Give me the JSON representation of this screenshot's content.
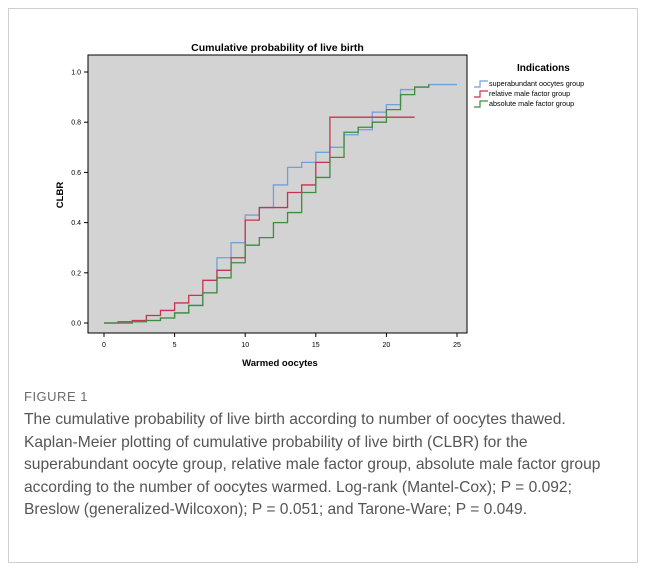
{
  "figure": {
    "label": "FIGURE 1",
    "caption": "The cumulative probability of live birth according to number of oocytes thawed. Kaplan-Meier plotting of cumulative probability of live birth (CLBR) for the superabundant oocyte group, relative male factor group, absolute male factor group according to the number of oocytes warmed. Log-rank (Mantel-Cox); P = 0.092; Breslow (generalized-Wilcoxon); P = 0.051; and Tarone-Ware; P = 0.049."
  },
  "chart_data": {
    "type": "line",
    "step": true,
    "title": "Cumulative probability of live birth",
    "xlabel": "Warmed oocytes",
    "ylabel": "CLBR",
    "xlim": [
      0,
      25
    ],
    "ylim": [
      0,
      1
    ],
    "xticks": [
      "0",
      "5",
      "10",
      "15",
      "20",
      "25"
    ],
    "yticks": [
      "0.0",
      "0.2",
      "0.4",
      "0.6",
      "0.8",
      "1.0"
    ],
    "grid": false,
    "legend_title": "Indications",
    "legend_position": "right",
    "plot_background": "#d3d3d3",
    "series": [
      {
        "name": "superabundant oocytes group",
        "color": "#6fa0da",
        "x": [
          0,
          1,
          2,
          3,
          4,
          5,
          6,
          7,
          8,
          9,
          10,
          11,
          12,
          13,
          14,
          15,
          16,
          17,
          18,
          19,
          20,
          21,
          22,
          23,
          24,
          25
        ],
        "y": [
          0.0,
          0.0,
          0.005,
          0.01,
          0.02,
          0.04,
          0.07,
          0.12,
          0.26,
          0.32,
          0.43,
          0.46,
          0.55,
          0.62,
          0.64,
          0.68,
          0.7,
          0.75,
          0.77,
          0.84,
          0.87,
          0.93,
          0.94,
          0.95,
          0.95,
          0.95
        ]
      },
      {
        "name": "relative male factor group",
        "color": "#c8334d",
        "x": [
          0,
          1,
          2,
          3,
          4,
          5,
          6,
          7,
          8,
          9,
          10,
          11,
          12,
          13,
          14,
          15,
          16,
          17,
          18,
          19,
          20,
          21,
          22
        ],
        "y": [
          0.0,
          0.005,
          0.01,
          0.03,
          0.05,
          0.08,
          0.11,
          0.17,
          0.21,
          0.26,
          0.41,
          0.46,
          0.46,
          0.52,
          0.55,
          0.64,
          0.82,
          0.82,
          0.82,
          0.82,
          0.82,
          0.82,
          0.82
        ]
      },
      {
        "name": "absolute male factor group",
        "color": "#3e8d3e",
        "x": [
          0,
          1,
          2,
          3,
          4,
          5,
          6,
          7,
          8,
          9,
          10,
          11,
          12,
          13,
          14,
          15,
          16,
          17,
          18,
          19,
          20,
          21,
          22,
          23
        ],
        "y": [
          0.0,
          0.0,
          0.005,
          0.01,
          0.02,
          0.04,
          0.07,
          0.12,
          0.18,
          0.24,
          0.31,
          0.34,
          0.4,
          0.44,
          0.52,
          0.58,
          0.66,
          0.76,
          0.78,
          0.8,
          0.85,
          0.91,
          0.94,
          0.95
        ]
      }
    ]
  }
}
